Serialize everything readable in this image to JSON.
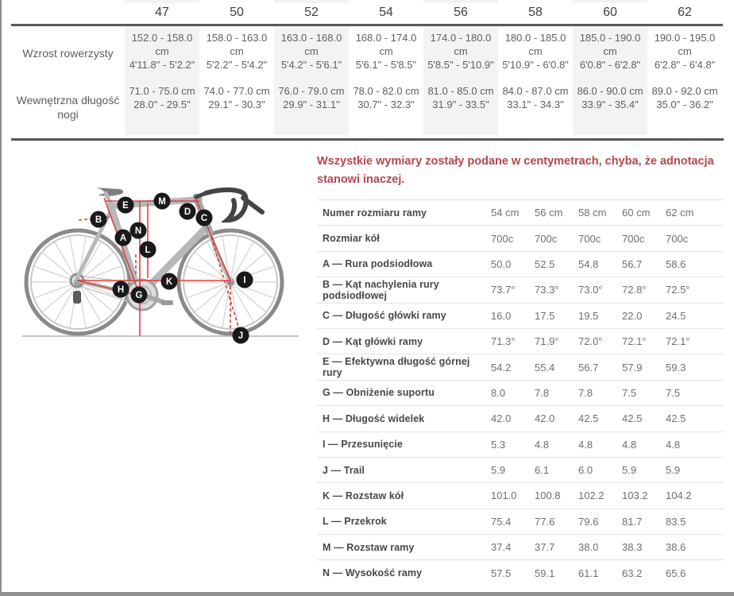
{
  "colors": {
    "accent_red": "#b7454f",
    "diagram_line_red": "#d9423d",
    "label_circle_fill": "#19191b",
    "divider_dark": "#58585a",
    "shaded_column_bg": "#f3f3f4"
  },
  "size_table": {
    "sizes": [
      "47",
      "50",
      "52",
      "54",
      "56",
      "58",
      "60",
      "62"
    ],
    "rows": [
      {
        "label": "Wzrost rowerzysty",
        "cells": [
          [
            "152.0 - 158.0",
            "cm",
            "4'11.8\" - 5'2.2\""
          ],
          [
            "158.0 - 163.0",
            "cm",
            "5'2.2\" - 5'4.2\""
          ],
          [
            "163.0 - 168.0",
            "cm",
            "5'4.2\" - 5'6.1\""
          ],
          [
            "168.0 - 174.0",
            "cm",
            "5'6.1\" - 5'8.5\""
          ],
          [
            "174.0 - 180.0",
            "cm",
            "5'8.5\" - 5'10.9\""
          ],
          [
            "180.0 - 185.0",
            "cm",
            "5'10.9\" - 6'0.8\""
          ],
          [
            "185.0 - 190.0",
            "cm",
            "6'0.8\" - 6'2.8\""
          ],
          [
            "190.0 - 195.0",
            "cm",
            "6'2.8\" - 6'4.8\""
          ]
        ]
      },
      {
        "label": "Wewnętrzna długość nogi",
        "cells": [
          [
            "71.0 - 75.0 cm",
            "28.0\" - 29.5\""
          ],
          [
            "74.0 - 77.0 cm",
            "29.1\" - 30.3\""
          ],
          [
            "76.0 - 79.0 cm",
            "29.9\" - 31.1\""
          ],
          [
            "78.0 - 82.0 cm",
            "30.7\" - 32.3\""
          ],
          [
            "81.0 - 85.0 cm",
            "31.9\" - 33.5\""
          ],
          [
            "84.0 - 87.0 cm",
            "33.1\" - 34.3\""
          ],
          [
            "86.0 - 90.0 cm",
            "33.9\" - 35.4\""
          ],
          [
            "89.0 - 92.0 cm",
            "35.0\" - 36.2\""
          ]
        ]
      }
    ]
  },
  "note": "Wszystkie wymiary zostały podane w centymetrach, chyba, że adnotacja stanowi inaczej.",
  "geometry_table": {
    "rows": [
      {
        "label": "Numer rozmiaru ramy",
        "values": [
          "54 cm",
          "56 cm",
          "58 cm",
          "60 cm",
          "62 cm"
        ]
      },
      {
        "label": "Rozmiar kół",
        "values": [
          "700c",
          "700c",
          "700c",
          "700c",
          "700c"
        ]
      },
      {
        "label": "A — Rura podsiodłowa",
        "values": [
          "50.0",
          "52.5",
          "54.8",
          "56.7",
          "58.6"
        ]
      },
      {
        "label": "B — Kąt nachylenia rury podsiodłowej",
        "values": [
          "73.7°",
          "73.3°",
          "73.0°",
          "72.8°",
          "72.5°"
        ]
      },
      {
        "label": "C — Długość główki ramy",
        "values": [
          "16.0",
          "17.5",
          "19.5",
          "22.0",
          "24.5"
        ]
      },
      {
        "label": "D — Kąt główki ramy",
        "values": [
          "71.3°",
          "71.9°",
          "72.0°",
          "72.1°",
          "72.1°"
        ]
      },
      {
        "label": "E — Efektywna długość górnej rury",
        "values": [
          "54.2",
          "55.4",
          "56.7",
          "57.9",
          "59.3"
        ]
      },
      {
        "label": "G — Obniżenie suportu",
        "values": [
          "8.0",
          "7.8",
          "7.8",
          "7.5",
          "7.5"
        ]
      },
      {
        "label": "H — Długość widelek",
        "values": [
          "42.0",
          "42.0",
          "42.5",
          "42.5",
          "42.5"
        ]
      },
      {
        "label": "I — Przesunięcie",
        "values": [
          "5.3",
          "4.8",
          "4.8",
          "4.8",
          "4.8"
        ]
      },
      {
        "label": "J — Trail",
        "values": [
          "5.9",
          "6.1",
          "6.0",
          "5.9",
          "5.9"
        ]
      },
      {
        "label": "K — Rozstaw kół",
        "values": [
          "101.0",
          "100.8",
          "102.2",
          "103.2",
          "104.2"
        ]
      },
      {
        "label": "L — Przekrok",
        "values": [
          "75.4",
          "77.6",
          "79.6",
          "81.7",
          "83.5"
        ]
      },
      {
        "label": "M — Rozstaw ramy",
        "values": [
          "37.4",
          "37.7",
          "38.0",
          "38.3",
          "38.6"
        ]
      },
      {
        "label": "N — Wysokość ramy",
        "values": [
          "57.5",
          "59.1",
          "61.1",
          "63.2",
          "65.6"
        ]
      }
    ]
  },
  "diagram": {
    "labels": [
      "A",
      "B",
      "C",
      "D",
      "E",
      "G",
      "H",
      "I",
      "J",
      "K",
      "L",
      "M",
      "N"
    ]
  }
}
